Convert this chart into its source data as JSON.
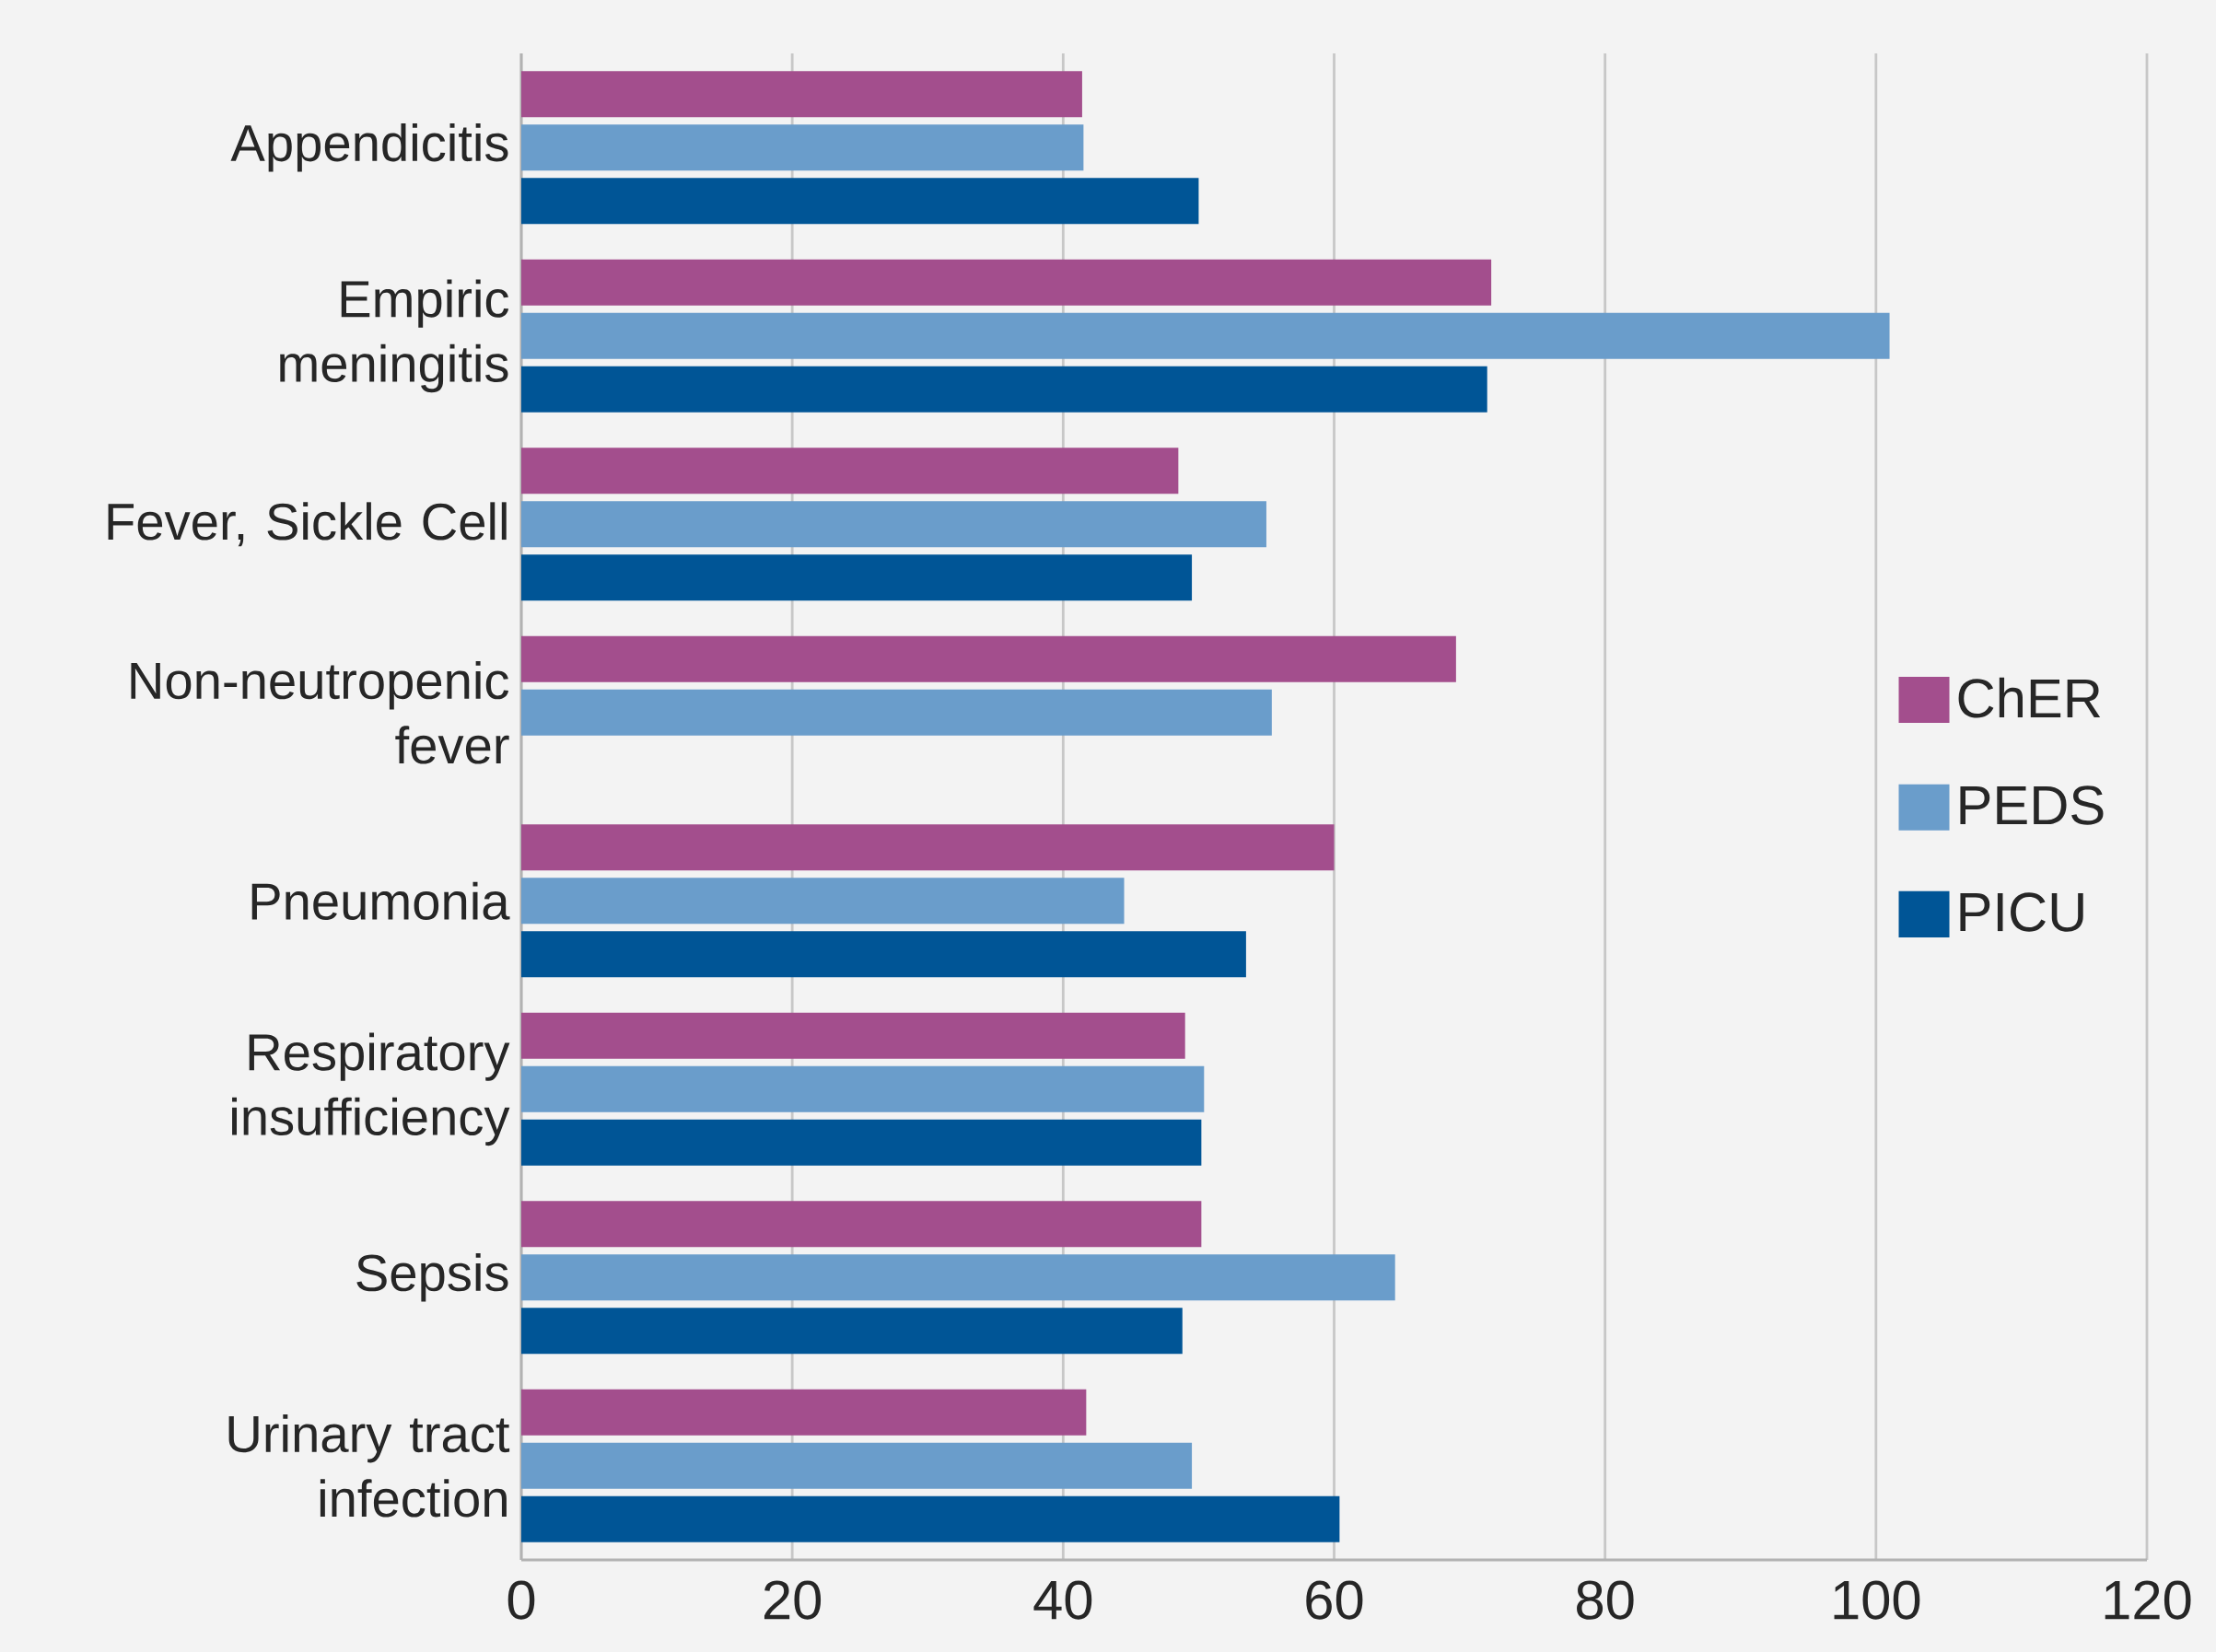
{
  "chart_data": {
    "type": "bar",
    "orientation": "horizontal",
    "categories": [
      "Appendicitis",
      "Empiric meningitis",
      "Fever, Sickle Cell",
      "Non-neutropenic fever",
      "Pneumonia",
      "Respiratory insufficiency",
      "Sepsis",
      "Urinary tract infection"
    ],
    "series": [
      {
        "name": "ChER",
        "color": "#a34e8d",
        "values": [
          41.4,
          71.6,
          48.5,
          69.0,
          60.0,
          49.0,
          50.2,
          41.7
        ]
      },
      {
        "name": "PEDS",
        "color": "#6a9dcb",
        "values": [
          41.5,
          101.0,
          55.0,
          55.4,
          44.5,
          50.4,
          64.5,
          49.5
        ]
      },
      {
        "name": "PICU",
        "color": "#005596",
        "values": [
          50.0,
          71.3,
          49.5,
          null,
          53.5,
          50.2,
          48.8,
          60.4
        ]
      }
    ],
    "xlim": [
      0,
      120
    ],
    "xticks": [
      0,
      20,
      40,
      60,
      80,
      100,
      120
    ],
    "grid": "x",
    "legend": "right"
  }
}
